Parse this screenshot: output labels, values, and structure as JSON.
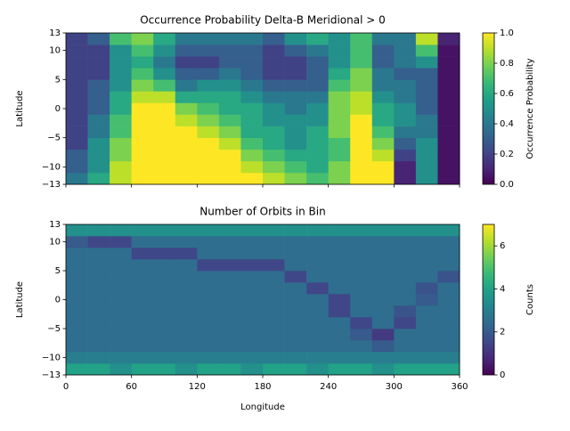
{
  "chart_data": [
    {
      "type": "heatmap",
      "title": "Occurrence Probability Delta-B Meridional > 0",
      "ylabel": "Latitude",
      "colorbar_label": "Occurrence Probability",
      "colormap": "viridis",
      "xbins": [
        0,
        20,
        40,
        60,
        80,
        100,
        120,
        140,
        160,
        180,
        200,
        220,
        240,
        260,
        280,
        300,
        320,
        340,
        360
      ],
      "ybins": [
        -13,
        -11,
        -9,
        -7,
        -5,
        -3,
        -1,
        1,
        3,
        5,
        7,
        9,
        11,
        13
      ],
      "values": [
        [
          0.4,
          0.6,
          0.9,
          1,
          1,
          1,
          1,
          1,
          1,
          0.9,
          0.8,
          0.7,
          0.8,
          1,
          1,
          0.1,
          0.5,
          0.05
        ],
        [
          0.3,
          0.5,
          0.9,
          1,
          1,
          1,
          1,
          1,
          0.9,
          0.8,
          0.7,
          0.6,
          0.8,
          1,
          1,
          0.1,
          0.5,
          0.05
        ],
        [
          0.3,
          0.5,
          0.8,
          1,
          1,
          1,
          1,
          1,
          0.8,
          0.7,
          0.6,
          0.6,
          0.7,
          1,
          0.9,
          0.2,
          0.5,
          0.05
        ],
        [
          0.2,
          0.5,
          0.8,
          1,
          1,
          1,
          1,
          0.9,
          0.7,
          0.6,
          0.5,
          0.6,
          0.7,
          1,
          0.8,
          0.3,
          0.5,
          0.05
        ],
        [
          0.2,
          0.4,
          0.7,
          1,
          1,
          1,
          0.9,
          0.8,
          0.6,
          0.6,
          0.5,
          0.6,
          0.8,
          1,
          0.7,
          0.4,
          0.4,
          0.05
        ],
        [
          0.2,
          0.4,
          0.7,
          1,
          1,
          0.9,
          0.8,
          0.7,
          0.6,
          0.5,
          0.5,
          0.5,
          0.8,
          1,
          0.6,
          0.5,
          0.4,
          0.05
        ],
        [
          0.2,
          0.3,
          0.6,
          1,
          1,
          0.8,
          0.7,
          0.6,
          0.6,
          0.5,
          0.4,
          0.5,
          0.8,
          0.9,
          0.6,
          0.5,
          0.3,
          0.05
        ],
        [
          0.2,
          0.3,
          0.6,
          0.9,
          0.9,
          0.6,
          0.6,
          0.6,
          0.5,
          0.4,
          0.4,
          0.4,
          0.8,
          0.9,
          0.5,
          0.4,
          0.3,
          0.05
        ],
        [
          0.2,
          0.3,
          0.5,
          0.8,
          0.7,
          0.4,
          0.5,
          0.5,
          0.4,
          0.3,
          0.3,
          0.3,
          0.7,
          0.8,
          0.4,
          0.4,
          0.3,
          0.05
        ],
        [
          0.2,
          0.2,
          0.5,
          0.7,
          0.5,
          0.3,
          0.3,
          0.4,
          0.3,
          0.2,
          0.2,
          0.3,
          0.6,
          0.8,
          0.4,
          0.3,
          0.3,
          0.05
        ],
        [
          0.2,
          0.2,
          0.5,
          0.6,
          0.4,
          0.2,
          0.2,
          0.3,
          0.3,
          0.2,
          0.2,
          0.3,
          0.5,
          0.7,
          0.3,
          0.4,
          0.5,
          0.05
        ],
        [
          0.2,
          0.2,
          0.5,
          0.7,
          0.5,
          0.3,
          0.3,
          0.3,
          0.3,
          0.2,
          0.3,
          0.4,
          0.5,
          0.7,
          0.3,
          0.4,
          0.7,
          0.05
        ],
        [
          0.2,
          0.3,
          0.7,
          0.8,
          0.6,
          0.4,
          0.4,
          0.4,
          0.4,
          0.3,
          0.5,
          0.6,
          0.5,
          0.7,
          0.4,
          0.4,
          0.9,
          0.1
        ]
      ],
      "xlim": [
        0,
        360
      ],
      "xticks": [
        0,
        60,
        120,
        180,
        240,
        300,
        360
      ],
      "ylim": [
        -13,
        13
      ],
      "yticks": [
        {
          "value": -13,
          "label": "−13"
        },
        {
          "value": -10,
          "label": "−10"
        },
        {
          "value": -5,
          "label": "−5"
        },
        0,
        5,
        10,
        13
      ],
      "clim": [
        0,
        1
      ],
      "cticks": [
        {
          "value": 0,
          "label": "0.0"
        },
        {
          "value": 0.2,
          "label": "0.2"
        },
        {
          "value": 0.4,
          "label": "0.4"
        },
        {
          "value": 0.6,
          "label": "0.6"
        },
        {
          "value": 0.8,
          "label": "0.8"
        },
        {
          "value": 1,
          "label": "1.0"
        }
      ]
    },
    {
      "type": "heatmap",
      "title": "Number of Orbits in Bin",
      "xlabel": "Longitude",
      "ylabel": "Latitude",
      "colorbar_label": "Counts",
      "colormap": "viridis",
      "xbins": [
        0,
        20,
        40,
        60,
        80,
        100,
        120,
        140,
        160,
        180,
        200,
        220,
        240,
        260,
        280,
        300,
        320,
        340,
        360
      ],
      "ybins": [
        -13,
        -11,
        -9,
        -7,
        -5,
        -3,
        -1,
        1,
        3,
        5,
        7,
        9,
        11,
        13
      ],
      "values": [
        [
          4,
          4,
          3.5,
          4,
          4,
          3.5,
          4,
          4,
          3.5,
          4,
          4,
          3.5,
          4,
          4,
          3.5,
          4,
          4,
          4
        ],
        [
          3,
          3,
          3,
          3,
          3,
          3,
          3,
          3,
          3,
          3,
          3,
          3,
          3,
          3,
          3,
          3,
          3,
          3
        ],
        [
          2.5,
          2.5,
          2.5,
          2.5,
          2.5,
          2.5,
          2.5,
          2.5,
          2.5,
          2.5,
          2.5,
          2.5,
          2.5,
          2.5,
          2,
          2.5,
          2.5,
          2.5
        ],
        [
          2.5,
          2.5,
          2.5,
          2.5,
          2.5,
          2.5,
          2.5,
          2.5,
          2.5,
          2.5,
          2.5,
          2.5,
          2.5,
          2,
          1.2,
          2.5,
          2.5,
          2.5
        ],
        [
          2.5,
          2.5,
          2.5,
          2.5,
          2.5,
          2.5,
          2.5,
          2.5,
          2.5,
          2.5,
          2.5,
          2.5,
          2.5,
          1.5,
          2.5,
          1.5,
          2.5,
          2.5
        ],
        [
          2.5,
          2.5,
          2.5,
          2.5,
          2.5,
          2.5,
          2.5,
          2.5,
          2.5,
          2.5,
          2.5,
          2.5,
          1.5,
          2.5,
          2.5,
          1.8,
          2.5,
          2.5
        ],
        [
          2.5,
          2.5,
          2.5,
          2.5,
          2.5,
          2.5,
          2.5,
          2.5,
          2.5,
          2.5,
          2.5,
          2.5,
          1.5,
          2.5,
          2.5,
          2.5,
          2,
          2.5
        ],
        [
          2.5,
          2.5,
          2.5,
          2.5,
          2.5,
          2.5,
          2.5,
          2.5,
          2.5,
          2.5,
          2.5,
          1.5,
          2.5,
          2.5,
          2.5,
          2.5,
          1.8,
          2.5
        ],
        [
          2.5,
          2.5,
          2.5,
          2.5,
          2.5,
          2.5,
          2.5,
          2.5,
          2.5,
          2.5,
          1.5,
          2.5,
          2.5,
          2.5,
          2.5,
          2.5,
          2.5,
          1.8
        ],
        [
          2.5,
          2.5,
          2.5,
          2.5,
          2.5,
          2.5,
          1.5,
          1.5,
          1.5,
          1.5,
          2.5,
          2.5,
          2.5,
          2.5,
          2.5,
          2.5,
          2.5,
          2.5
        ],
        [
          2.5,
          2.5,
          2.5,
          1.5,
          1.5,
          1.5,
          2.5,
          2.5,
          2.5,
          2.5,
          2.5,
          2.5,
          2.5,
          2.5,
          2.5,
          2.5,
          2.5,
          2.5
        ],
        [
          2,
          1.5,
          1.5,
          2.5,
          2.5,
          2.5,
          2.5,
          2.5,
          2.5,
          2.5,
          2.5,
          2.5,
          2.5,
          2.5,
          2.5,
          2.5,
          2.5,
          2.5
        ],
        [
          3.5,
          3.5,
          3.5,
          3.5,
          3.5,
          3.5,
          3.5,
          3.5,
          3.5,
          3.5,
          3.5,
          3.5,
          3.5,
          3.5,
          3.5,
          3.5,
          3.5,
          3.5
        ]
      ],
      "xlim": [
        0,
        360
      ],
      "xticks": [
        0,
        60,
        120,
        180,
        240,
        300,
        360
      ],
      "ylim": [
        -13,
        13
      ],
      "yticks": [
        {
          "value": -13,
          "label": "−13"
        },
        {
          "value": -10,
          "label": "−10"
        },
        {
          "value": -5,
          "label": "−5"
        },
        0,
        5,
        10,
        13
      ],
      "clim": [
        0,
        7
      ],
      "cticks": [
        0,
        2,
        4,
        6
      ]
    }
  ]
}
